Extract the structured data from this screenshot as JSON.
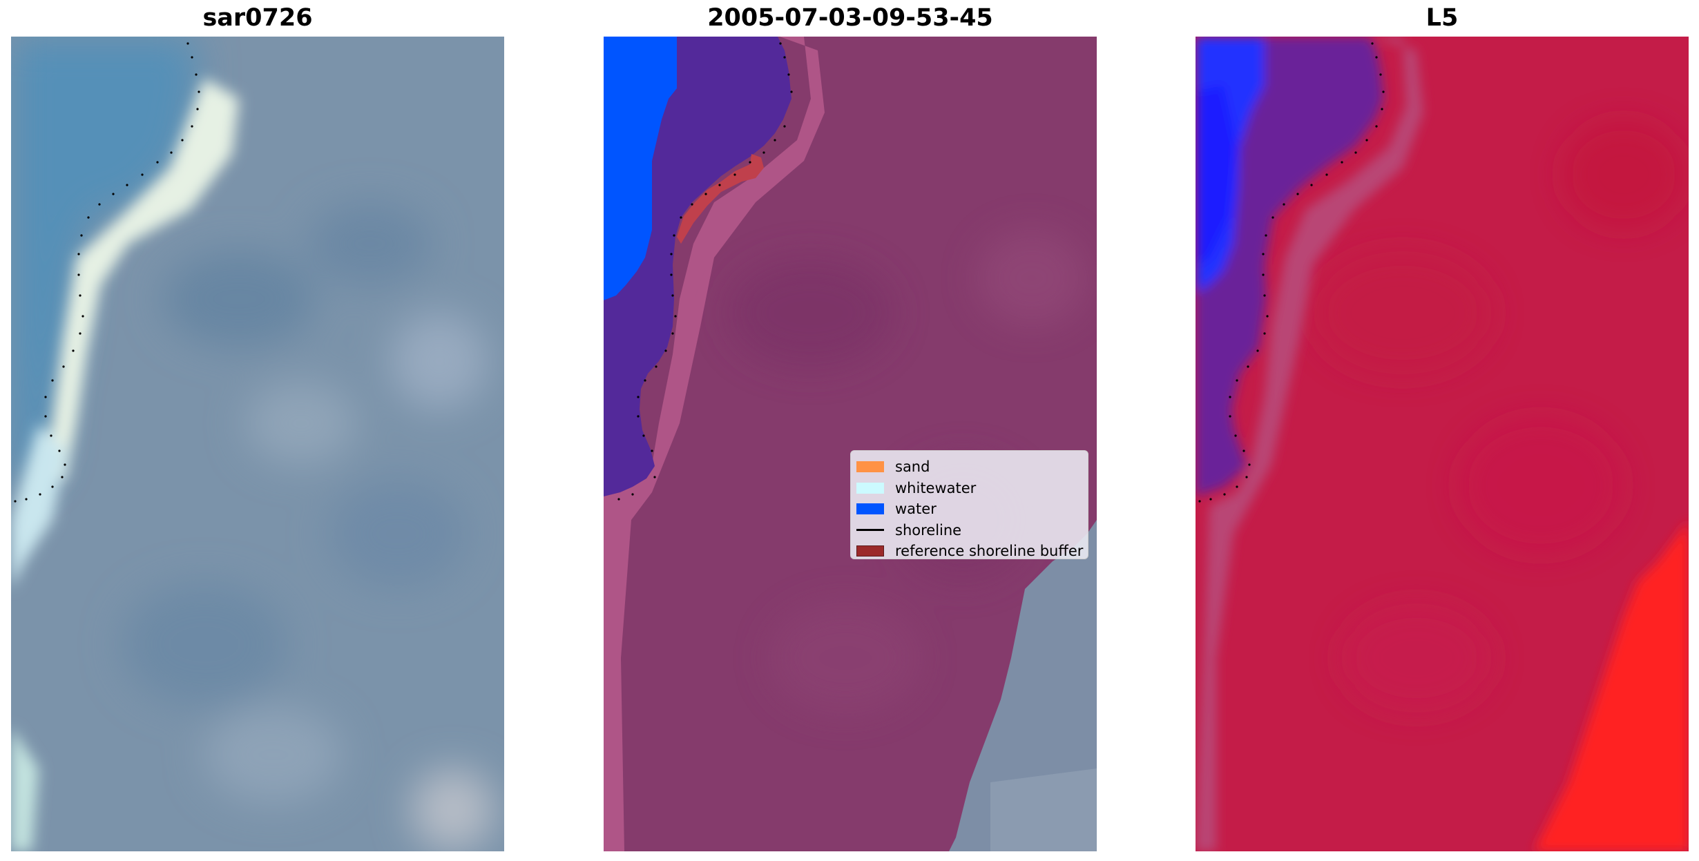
{
  "panels": [
    {
      "title": "sar0726"
    },
    {
      "title": "2005-07-03-09-53-45"
    },
    {
      "title": "L5"
    }
  ],
  "legend": {
    "items": [
      {
        "label": "sand",
        "color": "#ff9245",
        "kind": "patch"
      },
      {
        "label": "whitewater",
        "color": "#ccfaff",
        "kind": "patch"
      },
      {
        "label": "water",
        "color": "#0055ff",
        "kind": "patch"
      },
      {
        "label": "shoreline",
        "color": "#000000",
        "kind": "line"
      },
      {
        "label": "reference shoreline buffer",
        "color": "#9b2a2a",
        "kind": "patch"
      }
    ]
  },
  "colors": {
    "rgb_water": "#5a8fb5",
    "rgb_land": "#7a8fa6",
    "rgb_bright": "#e8f2ea",
    "class_water": "#0055ff",
    "class_dark": "#53299a",
    "class_land": "#853b6c",
    "class_shore": "#b65a8c",
    "class_buffer": "#c0404c",
    "class_gray": "#7d8ea6",
    "mndwi_blue": "#2233ff",
    "mndwi_purple": "#6a2099",
    "mndwi_red": "#c71a45",
    "mndwi_bright_red": "#ff2020"
  }
}
